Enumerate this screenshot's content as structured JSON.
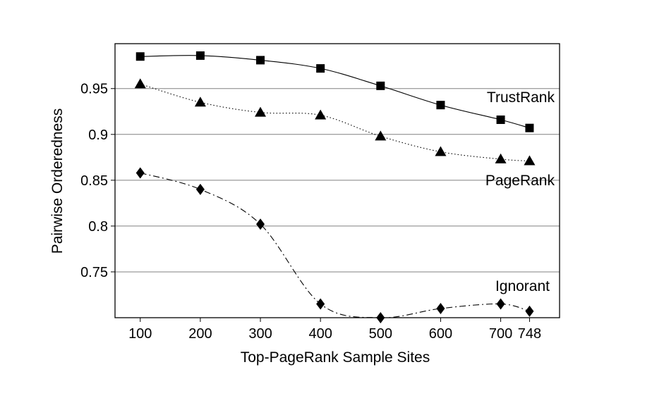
{
  "chart_data": {
    "type": "line",
    "xlabel": "Top-PageRank Sample Sites",
    "ylabel": "Pairwise Orderedness",
    "x": [
      100,
      200,
      300,
      400,
      500,
      600,
      700,
      748
    ],
    "x_tick_labels": [
      "100",
      "200",
      "300",
      "400",
      "500",
      "600",
      "700",
      "748"
    ],
    "y_ticks": [
      0.75,
      0.8,
      0.85,
      0.9,
      0.95
    ],
    "y_tick_labels": [
      "0.75",
      "0.8",
      "0.85",
      "0.9",
      "0.95"
    ],
    "ylim": [
      0.7,
      0.999
    ],
    "xlim": [
      58,
      798
    ],
    "grid": "horizontal",
    "series": [
      {
        "name": "TrustRank",
        "marker": "square",
        "line_style": "solid",
        "values": [
          0.985,
          0.986,
          0.981,
          0.972,
          0.953,
          0.932,
          0.916,
          0.907
        ]
      },
      {
        "name": "PageRank",
        "marker": "triangle",
        "line_style": "dotted",
        "values": [
          0.955,
          0.935,
          0.924,
          0.921,
          0.898,
          0.881,
          0.873,
          0.871
        ]
      },
      {
        "name": "Ignorant",
        "marker": "diamond",
        "line_style": "dash-dot",
        "values": [
          0.858,
          0.84,
          0.802,
          0.715,
          0.7,
          0.71,
          0.715,
          0.707
        ]
      }
    ],
    "colors": {
      "line": "#000000",
      "grid": "#808080",
      "background": "#ffffff"
    }
  }
}
